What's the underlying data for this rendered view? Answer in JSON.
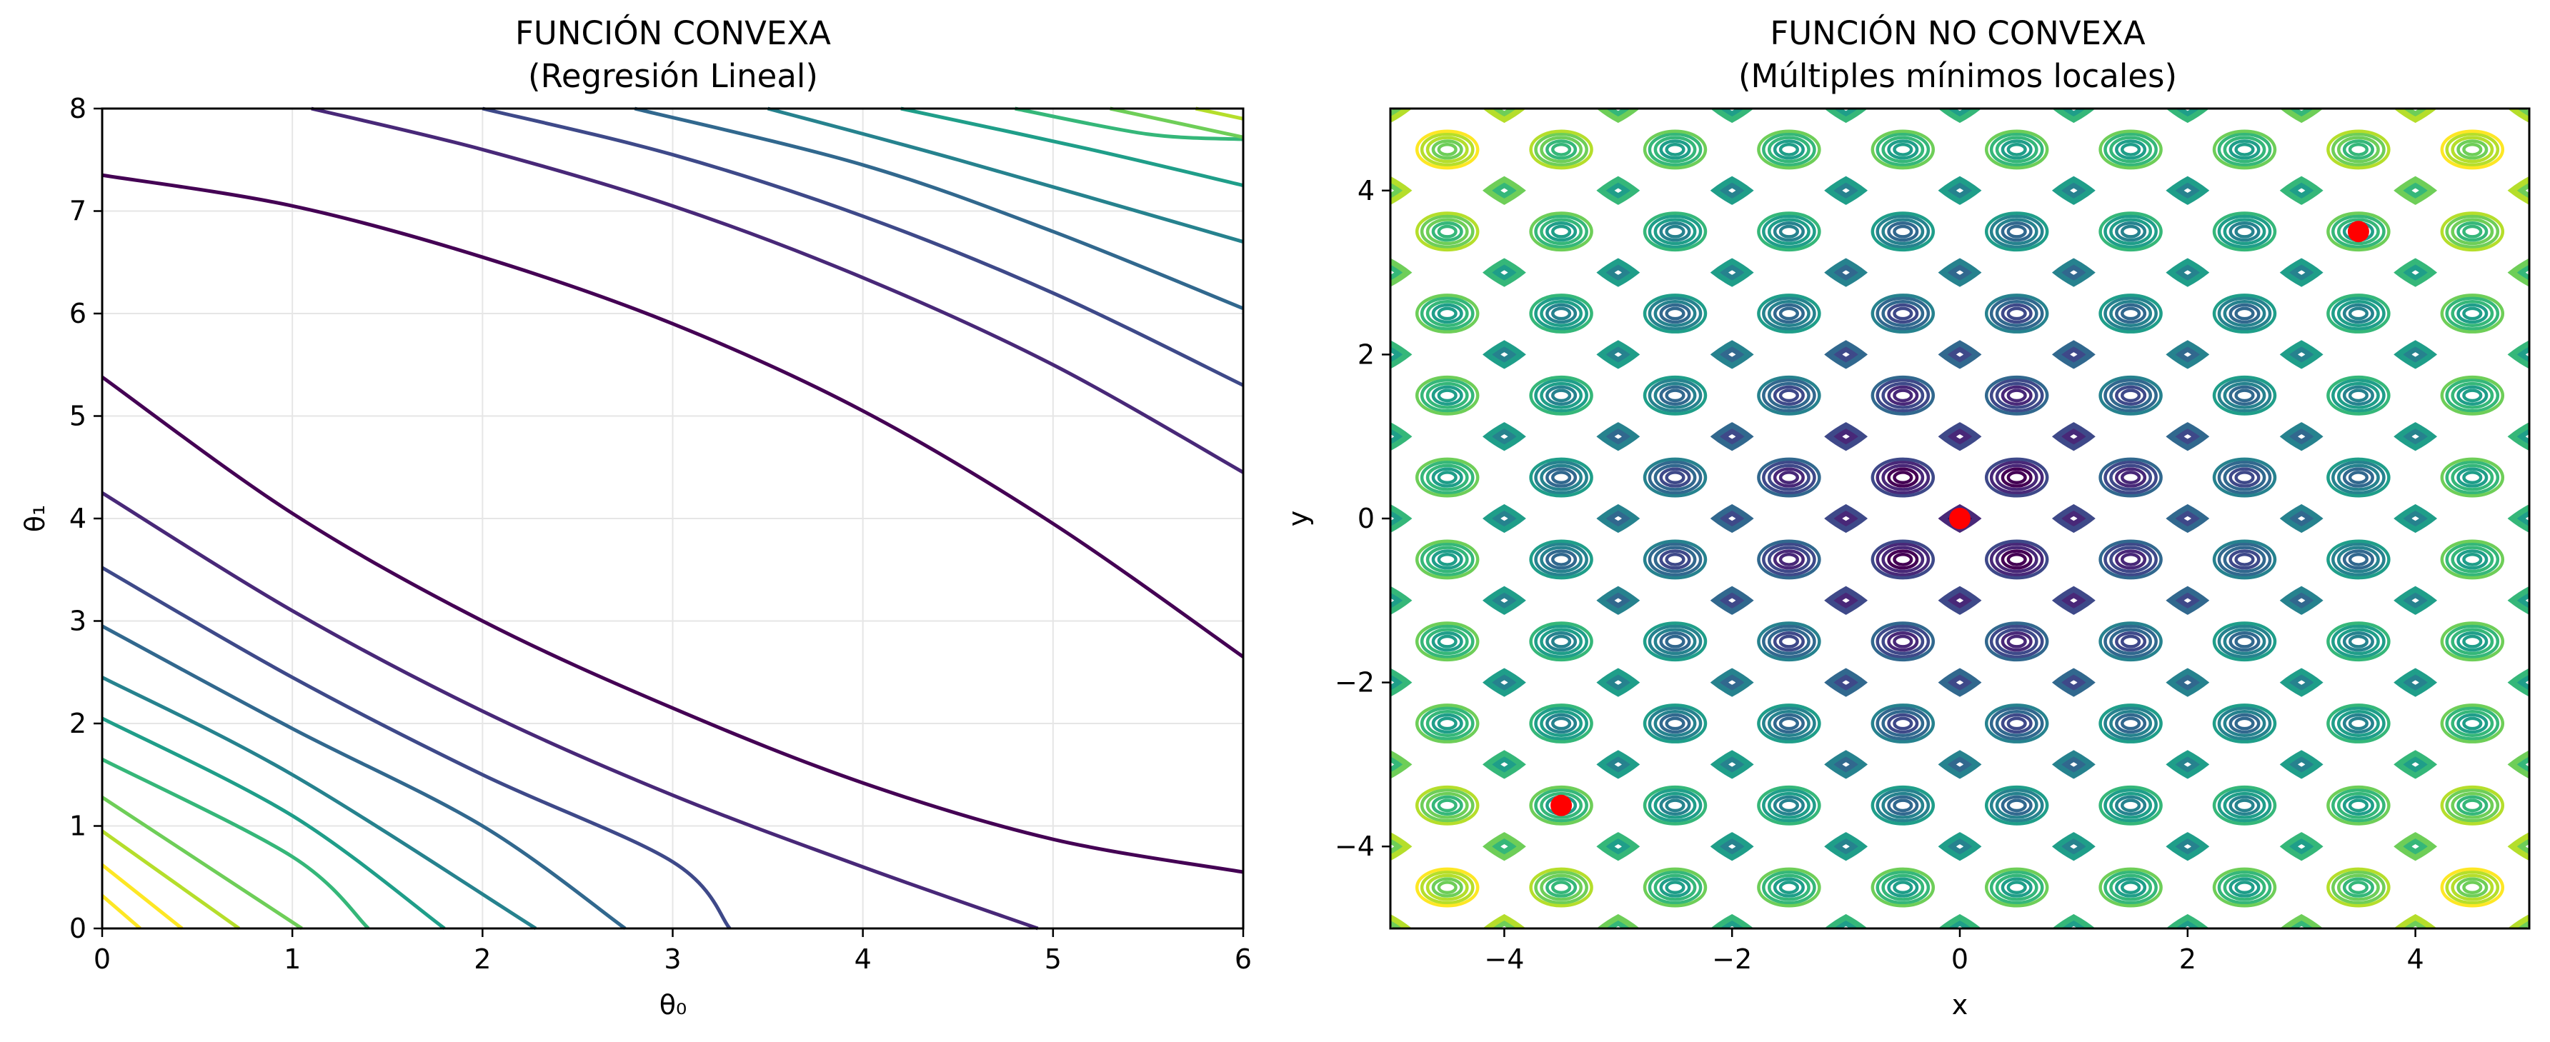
{
  "colors": {
    "viridis": [
      "#440154",
      "#482878",
      "#3e4989",
      "#31688e",
      "#26828e",
      "#1f9e89",
      "#35b779",
      "#6ece58",
      "#b5de2b",
      "#fde725"
    ],
    "minimum_marker": "#ff0000",
    "grid": "#e6e6e6"
  },
  "chart_data": [
    {
      "type": "contour",
      "title_line1": "FUNCIÓN CONVEXA",
      "title_line2": "(Regresión Lineal)",
      "xlabel": "θ₀",
      "ylabel": "θ₁",
      "xlim": [
        0,
        6
      ],
      "ylim": [
        0,
        8
      ],
      "xticks": [
        "0",
        "1",
        "2",
        "3",
        "4",
        "5",
        "6"
      ],
      "yticks": [
        "0",
        "1",
        "2",
        "3",
        "4",
        "5",
        "6",
        "7",
        "8"
      ],
      "grid": true,
      "contour_curves": [
        {
          "level_index": 0,
          "points": [
            [
              0,
              7.35
            ],
            [
              1,
              7.05
            ],
            [
              2,
              6.55
            ],
            [
              3,
              5.9
            ],
            [
              4,
              5.05
            ],
            [
              5,
              3.95
            ],
            [
              6,
              2.65
            ]
          ]
        },
        {
          "level_index": 0,
          "points": [
            [
              0,
              5.38
            ],
            [
              1,
              4.05
            ],
            [
              2,
              3.0
            ],
            [
              3,
              2.15
            ],
            [
              4,
              1.42
            ],
            [
              5,
              0.87
            ],
            [
              6,
              0.55
            ]
          ]
        },
        {
          "level_index": 1,
          "points": [
            [
              0,
              4.25
            ],
            [
              1,
              3.1
            ],
            [
              2,
              2.12
            ],
            [
              3,
              1.3
            ],
            [
              4,
              0.6
            ],
            [
              4.92,
              0
            ]
          ]
        },
        {
          "level_index": 1,
          "points": [
            [
              1.1,
              8.0
            ],
            [
              2,
              7.6
            ],
            [
              3,
              7.05
            ],
            [
              4,
              6.35
            ],
            [
              5,
              5.5
            ],
            [
              6,
              4.45
            ]
          ]
        },
        {
          "level_index": 2,
          "points": [
            [
              0,
              3.52
            ],
            [
              1,
              2.45
            ],
            [
              2,
              1.5
            ],
            [
              3,
              0.65
            ],
            [
              3.3,
              0
            ]
          ]
        },
        {
          "level_index": 2,
          "points": [
            [
              2.0,
              8.0
            ],
            [
              3,
              7.55
            ],
            [
              4,
              6.95
            ],
            [
              5,
              6.2
            ],
            [
              6,
              5.3
            ]
          ]
        },
        {
          "level_index": 3,
          "points": [
            [
              0,
              2.95
            ],
            [
              1,
              1.95
            ],
            [
              2,
              1.0
            ],
            [
              2.75,
              0
            ]
          ]
        },
        {
          "level_index": 3,
          "points": [
            [
              2.8,
              8.0
            ],
            [
              4,
              7.45
            ],
            [
              5,
              6.8
            ],
            [
              6,
              6.05
            ]
          ]
        },
        {
          "level_index": 4,
          "points": [
            [
              0,
              2.45
            ],
            [
              1,
              1.5
            ],
            [
              2.28,
              0
            ]
          ]
        },
        {
          "level_index": 4,
          "points": [
            [
              3.5,
              8.0
            ],
            [
              4.5,
              7.5
            ],
            [
              6,
              6.7
            ]
          ]
        },
        {
          "level_index": 5,
          "points": [
            [
              0,
              2.05
            ],
            [
              1,
              1.1
            ],
            [
              1.8,
              0
            ]
          ]
        },
        {
          "level_index": 5,
          "points": [
            [
              4.2,
              8.0
            ],
            [
              5.2,
              7.6
            ],
            [
              6,
              7.25
            ]
          ]
        },
        {
          "level_index": 6,
          "points": [
            [
              0,
              1.65
            ],
            [
              1,
              0.7
            ],
            [
              1.4,
              0
            ]
          ]
        },
        {
          "level_index": 6,
          "points": [
            [
              4.8,
              8.0
            ],
            [
              5.5,
              7.75
            ],
            [
              6,
              7.7
            ]
          ]
        },
        {
          "level_index": 7,
          "points": [
            [
              0,
              1.28
            ],
            [
              1.05,
              0
            ]
          ]
        },
        {
          "level_index": 7,
          "points": [
            [
              5.3,
              8.0
            ],
            [
              6,
              7.72
            ]
          ]
        },
        {
          "level_index": 8,
          "points": [
            [
              0,
              0.95
            ],
            [
              0.72,
              0
            ]
          ]
        },
        {
          "level_index": 8,
          "points": [
            [
              5.75,
              8.0
            ],
            [
              6,
              7.9
            ]
          ]
        },
        {
          "level_index": 9,
          "points": [
            [
              0,
              0.62
            ],
            [
              0.42,
              0
            ]
          ]
        },
        {
          "level_index": 9,
          "points": [
            [
              0,
              0.32
            ],
            [
              0.2,
              0
            ]
          ]
        }
      ]
    },
    {
      "type": "contour",
      "title_line1": "FUNCIÓN NO CONVEXA",
      "title_line2": "(Múltiples mínimos locales)",
      "xlabel": "x",
      "ylabel": "y",
      "xlim": [
        -5,
        5
      ],
      "ylim": [
        -5,
        5
      ],
      "xticks": [
        "−4",
        "−2",
        "0",
        "2",
        "4"
      ],
      "yticks": [
        "−4",
        "−2",
        "0",
        "2",
        "4"
      ],
      "grid": false,
      "function_note_visible": "",
      "minima_points": [
        {
          "x": 0,
          "y": 0
        },
        {
          "x": 3.5,
          "y": 3.5
        },
        {
          "x": -3.5,
          "y": -3.5
        }
      ]
    }
  ]
}
